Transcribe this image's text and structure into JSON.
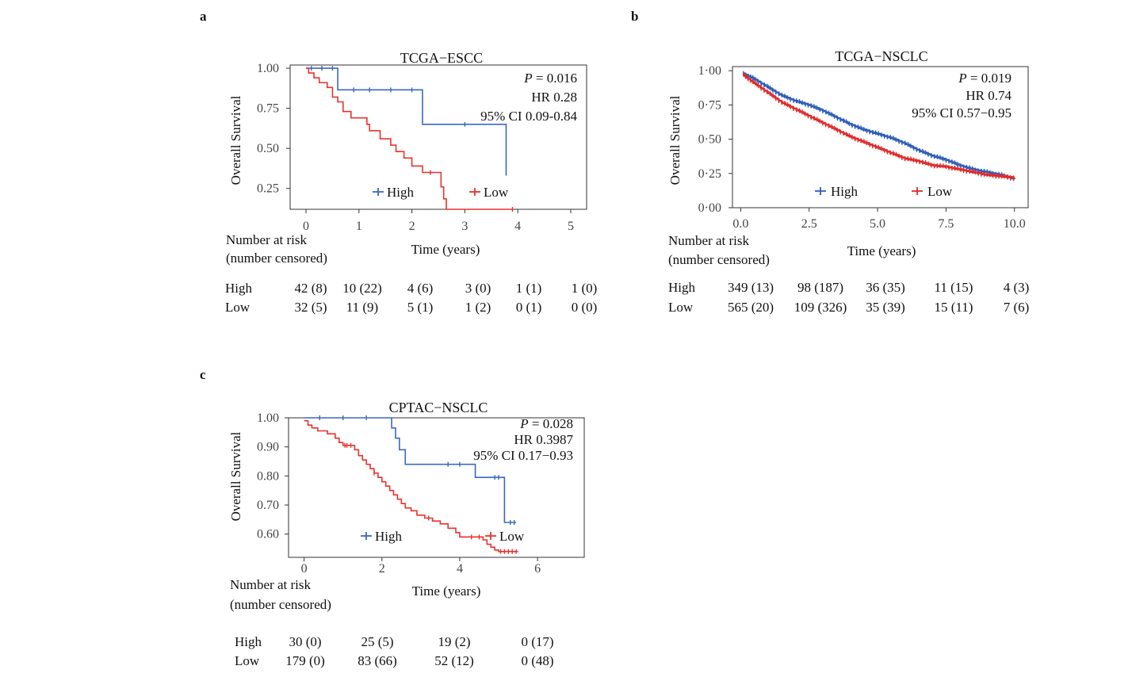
{
  "chart_data": [
    {
      "panel": "a",
      "type": "line",
      "title": "TCGA−ESCC",
      "xlabel": "Time (years)",
      "ylabel": "Overall Survival",
      "xlim": [
        -0.3,
        5.3
      ],
      "ylim": [
        0.12,
        1.02
      ],
      "xticks": [
        0,
        1,
        2,
        3,
        4,
        5
      ],
      "xtick_labels": [
        "0",
        "1",
        "2",
        "3",
        "4",
        "5"
      ],
      "yticks": [
        0.25,
        0.5,
        0.75,
        1.0
      ],
      "ytick_labels": [
        "0.25",
        "0.50",
        "0.75",
        "1.00"
      ],
      "stats": [
        "P = 0.016",
        "HR 0.28",
        "95% CI 0.09-0.84"
      ],
      "legend": [
        "High",
        "Low"
      ],
      "series": [
        {
          "name": "High",
          "color": "#3b68c0",
          "steps": [
            [
              0,
              1.0
            ],
            [
              0.6,
              0.865
            ],
            [
              2.2,
              0.65
            ],
            [
              3.78,
              0.33
            ]
          ],
          "end": 3.78,
          "censors": [
            [
              0.1,
              1.0
            ],
            [
              0.3,
              1.0
            ],
            [
              0.5,
              1.0
            ],
            [
              0.9,
              0.865
            ],
            [
              1.2,
              0.865
            ],
            [
              1.6,
              0.865
            ],
            [
              2.0,
              0.865
            ],
            [
              3.0,
              0.65
            ]
          ]
        },
        {
          "name": "Low",
          "color": "#e8332e",
          "steps": [
            [
              0,
              1.0
            ],
            [
              0.05,
              0.97
            ],
            [
              0.15,
              0.94
            ],
            [
              0.25,
              0.91
            ],
            [
              0.4,
              0.88
            ],
            [
              0.5,
              0.82
            ],
            [
              0.6,
              0.79
            ],
            [
              0.7,
              0.73
            ],
            [
              0.85,
              0.69
            ],
            [
              1.15,
              0.65
            ],
            [
              1.2,
              0.61
            ],
            [
              1.4,
              0.56
            ],
            [
              1.6,
              0.52
            ],
            [
              1.7,
              0.48
            ],
            [
              1.85,
              0.44
            ],
            [
              2.0,
              0.39
            ],
            [
              2.2,
              0.35
            ],
            [
              2.55,
              0.26
            ],
            [
              2.6,
              0.185
            ],
            [
              2.65,
              0.12
            ]
          ],
          "end": 3.9,
          "censors": [
            [
              2.35,
              0.35
            ],
            [
              3.9,
              0.12
            ]
          ]
        }
      ],
      "risk_table": {
        "header": [
          "Number at risk",
          "(number censored)"
        ],
        "rows": [
          {
            "label": "High",
            "values": [
              "42 (8)",
              "10 (22)",
              "4 (6)",
              "3 (0)",
              "1 (1)",
              "1 (0)"
            ]
          },
          {
            "label": "Low",
            "values": [
              "32 (5)",
              "11 (9)",
              "5 (1)",
              "1 (2)",
              "0 (1)",
              "0 (0)"
            ]
          }
        ]
      }
    },
    {
      "panel": "b",
      "type": "line",
      "title": "TCGA−NSCLC",
      "xlabel": "Time (years)",
      "ylabel": "Overall Survival",
      "xlim": [
        -0.3,
        10.5
      ],
      "ylim": [
        0.0,
        1.03
      ],
      "xticks": [
        0,
        2.5,
        5,
        7.5,
        10
      ],
      "xtick_labels": [
        "0.0",
        "2.5",
        "5.0",
        "7.5",
        "10.0"
      ],
      "yticks": [
        0,
        0.25,
        0.5,
        0.75,
        1.0
      ],
      "ytick_labels": [
        "0·00",
        "0·25",
        "0·50",
        "0·75",
        "1·00"
      ],
      "stats": [
        "P = 0.019",
        "HR 0.74",
        "95% CI 0.57−0.95"
      ],
      "legend": [
        "High",
        "Low"
      ],
      "series": [
        {
          "name": "High",
          "color": "#2f5eb8",
          "curve": [
            [
              0.1,
              0.98
            ],
            [
              0.5,
              0.94
            ],
            [
              1,
              0.88
            ],
            [
              1.5,
              0.82
            ],
            [
              2,
              0.78
            ],
            [
              2.5,
              0.75
            ],
            [
              3,
              0.71
            ],
            [
              3.5,
              0.66
            ],
            [
              4,
              0.61
            ],
            [
              4.5,
              0.57
            ],
            [
              5,
              0.54
            ],
            [
              5.5,
              0.51
            ],
            [
              6,
              0.47
            ],
            [
              6.5,
              0.42
            ],
            [
              7,
              0.38
            ],
            [
              7.5,
              0.35
            ],
            [
              8,
              0.31
            ],
            [
              8.5,
              0.28
            ],
            [
              9,
              0.26
            ],
            [
              9.5,
              0.24
            ],
            [
              10,
              0.21
            ]
          ],
          "density": 2.4
        },
        {
          "name": "Low",
          "color": "#e02b2b",
          "curve": [
            [
              0.1,
              0.97
            ],
            [
              0.5,
              0.91
            ],
            [
              1,
              0.84
            ],
            [
              1.5,
              0.77
            ],
            [
              2,
              0.72
            ],
            [
              2.5,
              0.67
            ],
            [
              3,
              0.62
            ],
            [
              3.5,
              0.57
            ],
            [
              4,
              0.52
            ],
            [
              4.5,
              0.48
            ],
            [
              5,
              0.44
            ],
            [
              5.5,
              0.4
            ],
            [
              6,
              0.36
            ],
            [
              6.5,
              0.34
            ],
            [
              7,
              0.31
            ],
            [
              7.5,
              0.3
            ],
            [
              8,
              0.28
            ],
            [
              8.5,
              0.26
            ],
            [
              9,
              0.24
            ],
            [
              9.5,
              0.23
            ],
            [
              10,
              0.22
            ]
          ],
          "density": 2.8
        }
      ],
      "risk_table": {
        "header": [
          "Number at risk",
          "(number censored)"
        ],
        "rows": [
          {
            "label": "High",
            "values": [
              "349 (13)",
              "98 (187)",
              "36 (35)",
              "11 (15)",
              "4 (3)"
            ]
          },
          {
            "label": "Low",
            "values": [
              "565 (20)",
              "109 (326)",
              "35 (39)",
              "15 (11)",
              "7 (6)"
            ]
          }
        ]
      }
    },
    {
      "panel": "c",
      "type": "line",
      "title": "CPTAC−NSCLC",
      "xlabel": "Time (years)",
      "ylabel": "Overall Survival",
      "xlim": [
        -0.4,
        7.2
      ],
      "ylim": [
        0.52,
        1.0
      ],
      "xticks": [
        0,
        2,
        4,
        6
      ],
      "xtick_labels": [
        "0",
        "2",
        "4",
        "6"
      ],
      "yticks": [
        0.6,
        0.7,
        0.8,
        0.9,
        1.0
      ],
      "ytick_labels": [
        "0.60",
        "0.70",
        "0.80",
        "0.90",
        "1.00"
      ],
      "stats": [
        "P = 0.028",
        "HR 0.3987",
        "95% CI 0.17−0.93"
      ],
      "legend": [
        "High",
        "Low"
      ],
      "series": [
        {
          "name": "High",
          "color": "#3b68c0",
          "steps": [
            [
              0,
              1.0
            ],
            [
              2.25,
              0.965
            ],
            [
              2.35,
              0.93
            ],
            [
              2.45,
              0.89
            ],
            [
              2.6,
              0.84
            ],
            [
              4.4,
              0.795
            ],
            [
              5.15,
              0.64
            ]
          ],
          "end": 5.45,
          "censors": [
            [
              0.4,
              1.0
            ],
            [
              1.0,
              1.0
            ],
            [
              1.6,
              1.0
            ],
            [
              3.7,
              0.84
            ],
            [
              4.0,
              0.84
            ],
            [
              4.9,
              0.795
            ],
            [
              5.0,
              0.795
            ],
            [
              5.3,
              0.64
            ],
            [
              5.4,
              0.64
            ]
          ]
        },
        {
          "name": "Low",
          "color": "#e8332e",
          "steps": [
            [
              0,
              0.99
            ],
            [
              0.1,
              0.975
            ],
            [
              0.2,
              0.965
            ],
            [
              0.35,
              0.955
            ],
            [
              0.6,
              0.945
            ],
            [
              0.8,
              0.93
            ],
            [
              0.9,
              0.915
            ],
            [
              1.0,
              0.905
            ],
            [
              1.3,
              0.89
            ],
            [
              1.4,
              0.87
            ],
            [
              1.5,
              0.855
            ],
            [
              1.6,
              0.84
            ],
            [
              1.7,
              0.825
            ],
            [
              1.8,
              0.81
            ],
            [
              1.9,
              0.795
            ],
            [
              2.0,
              0.78
            ],
            [
              2.1,
              0.765
            ],
            [
              2.2,
              0.75
            ],
            [
              2.3,
              0.735
            ],
            [
              2.4,
              0.72
            ],
            [
              2.5,
              0.705
            ],
            [
              2.6,
              0.69
            ],
            [
              2.75,
              0.68
            ],
            [
              2.9,
              0.665
            ],
            [
              3.1,
              0.655
            ],
            [
              3.3,
              0.645
            ],
            [
              3.5,
              0.635
            ],
            [
              3.7,
              0.62
            ],
            [
              3.9,
              0.605
            ],
            [
              4.0,
              0.59
            ],
            [
              4.6,
              0.58
            ],
            [
              4.7,
              0.565
            ],
            [
              4.8,
              0.555
            ],
            [
              4.9,
              0.545
            ],
            [
              5.0,
              0.54
            ]
          ],
          "end": 5.5,
          "censors": [
            [
              1.05,
              0.905
            ],
            [
              1.1,
              0.905
            ],
            [
              1.2,
              0.905
            ],
            [
              1.8,
              0.81
            ],
            [
              3.2,
              0.655
            ],
            [
              4.3,
              0.59
            ],
            [
              4.5,
              0.59
            ],
            [
              5.05,
              0.54
            ],
            [
              5.15,
              0.54
            ],
            [
              5.25,
              0.54
            ],
            [
              5.35,
              0.54
            ],
            [
              5.45,
              0.54
            ]
          ]
        }
      ],
      "risk_table": {
        "header": [
          "Number at risk",
          "(number censored)"
        ],
        "rows": [
          {
            "label": "High",
            "values": [
              "30 (0)",
              "25 (5)",
              "19 (2)",
              "0 (17)"
            ]
          },
          {
            "label": "Low",
            "values": [
              "179 (0)",
              "83 (66)",
              "52 (12)",
              "0 (48)"
            ]
          }
        ]
      }
    }
  ]
}
